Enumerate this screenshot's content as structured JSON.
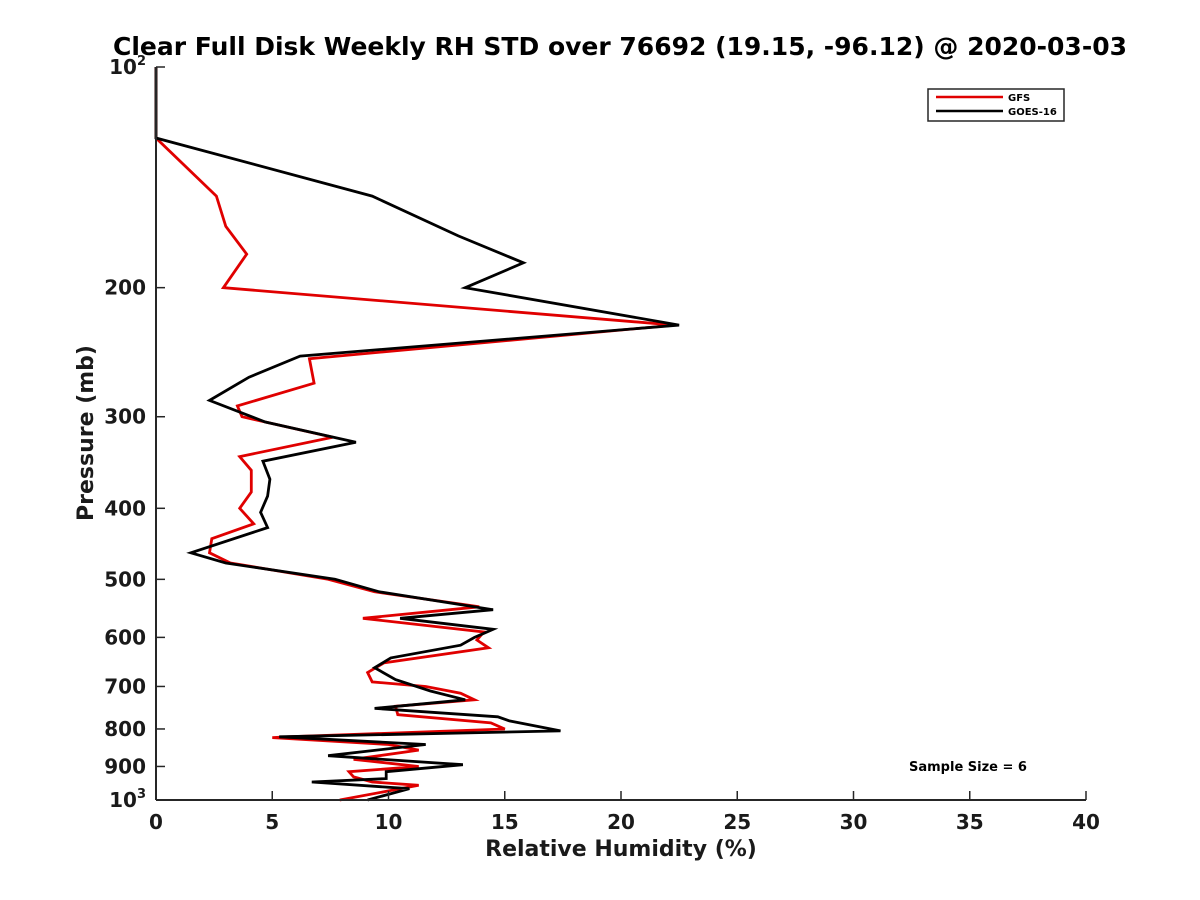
{
  "chart_data": {
    "type": "line",
    "title": "Clear Full Disk Weekly RH STD over 76692 (19.15, -96.12) @ 2020-03-03",
    "xlabel": "Relative Humidity (%)",
    "ylabel": "Pressure (mb)",
    "xlim": [
      0,
      40
    ],
    "ylim": [
      100,
      1000
    ],
    "yscale": "log",
    "y_reversed": true,
    "x_ticks": [
      "0",
      "5",
      "10",
      "15",
      "20",
      "25",
      "30",
      "35",
      "40"
    ],
    "y_ticks": [
      {
        "value": 100,
        "base": "10",
        "exp": "2"
      },
      {
        "value": 200,
        "label": "200"
      },
      {
        "value": 300,
        "label": "300"
      },
      {
        "value": 400,
        "label": "400"
      },
      {
        "value": 500,
        "label": "500"
      },
      {
        "value": 600,
        "label": "600"
      },
      {
        "value": 700,
        "label": "700"
      },
      {
        "value": 800,
        "label": "800"
      },
      {
        "value": 900,
        "label": "900"
      },
      {
        "value": 1000,
        "base": "10",
        "exp": "3"
      }
    ],
    "legend_position": "top-right",
    "annotation": "Sample Size = 6",
    "series": [
      {
        "name": "GFS",
        "color": "#e00000",
        "points": [
          [
            0,
            100
          ],
          [
            0,
            125
          ],
          [
            2.6,
            150
          ],
          [
            3.0,
            165
          ],
          [
            3.9,
            180
          ],
          [
            2.9,
            200
          ],
          [
            22.3,
            225
          ],
          [
            6.6,
            250
          ],
          [
            6.8,
            270
          ],
          [
            3.5,
            290
          ],
          [
            3.7,
            300
          ],
          [
            7.6,
            320
          ],
          [
            3.6,
            340
          ],
          [
            4.1,
            355
          ],
          [
            4.1,
            380
          ],
          [
            3.6,
            400
          ],
          [
            4.2,
            420
          ],
          [
            2.4,
            440
          ],
          [
            2.3,
            460
          ],
          [
            3.2,
            475
          ],
          [
            7.4,
            500
          ],
          [
            9.4,
            520
          ],
          [
            13.9,
            545
          ],
          [
            8.9,
            565
          ],
          [
            14.1,
            590
          ],
          [
            13.8,
            605
          ],
          [
            14.3,
            620
          ],
          [
            9.8,
            650
          ],
          [
            9.1,
            670
          ],
          [
            9.3,
            690
          ],
          [
            11.6,
            700
          ],
          [
            13.1,
            715
          ],
          [
            13.7,
            730
          ],
          [
            10.3,
            745
          ],
          [
            10.4,
            765
          ],
          [
            14.4,
            785
          ],
          [
            15.0,
            800
          ],
          [
            5.7,
            820
          ],
          [
            5.0,
            822
          ],
          [
            10.0,
            840
          ],
          [
            11.3,
            855
          ],
          [
            8.5,
            880
          ],
          [
            11.3,
            900
          ],
          [
            8.3,
            915
          ],
          [
            8.5,
            930
          ],
          [
            9.3,
            945
          ],
          [
            11.3,
            955
          ],
          [
            7.9,
            1000
          ]
        ]
      },
      {
        "name": "GOES-16",
        "color": "#000000",
        "points": [
          [
            0,
            100
          ],
          [
            0,
            125
          ],
          [
            9.3,
            150
          ],
          [
            13.0,
            170
          ],
          [
            15.8,
            185
          ],
          [
            13.3,
            200
          ],
          [
            22.5,
            225
          ],
          [
            6.2,
            248
          ],
          [
            4.0,
            265
          ],
          [
            2.3,
            285
          ],
          [
            4.7,
            305
          ],
          [
            8.6,
            325
          ],
          [
            4.6,
            345
          ],
          [
            4.9,
            365
          ],
          [
            4.8,
            385
          ],
          [
            4.5,
            405
          ],
          [
            4.8,
            425
          ],
          [
            1.5,
            460
          ],
          [
            3.0,
            475
          ],
          [
            7.7,
            500
          ],
          [
            9.6,
            520
          ],
          [
            14.5,
            550
          ],
          [
            10.5,
            565
          ],
          [
            14.5,
            585
          ],
          [
            13.7,
            600
          ],
          [
            13.1,
            615
          ],
          [
            10.1,
            640
          ],
          [
            9.4,
            660
          ],
          [
            10.3,
            685
          ],
          [
            11.8,
            710
          ],
          [
            13.3,
            730
          ],
          [
            9.4,
            750
          ],
          [
            14.7,
            770
          ],
          [
            15.2,
            780
          ],
          [
            17.4,
            805
          ],
          [
            5.3,
            820
          ],
          [
            11.6,
            840
          ],
          [
            7.4,
            870
          ],
          [
            13.2,
            895
          ],
          [
            9.9,
            915
          ],
          [
            9.9,
            935
          ],
          [
            6.7,
            945
          ],
          [
            10.9,
            965
          ],
          [
            9.1,
            1000
          ]
        ]
      }
    ]
  }
}
